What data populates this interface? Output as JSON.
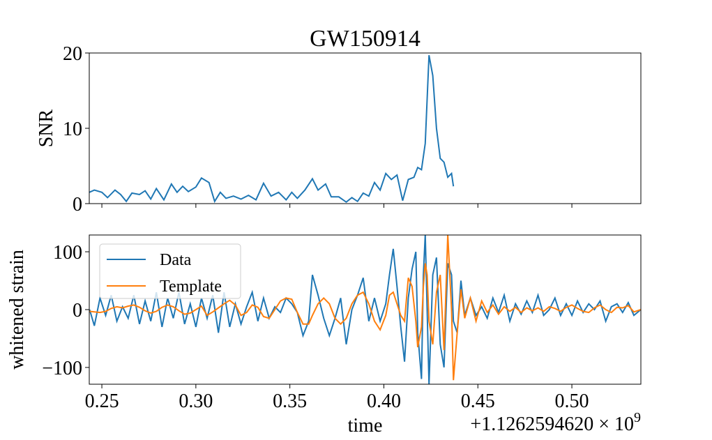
{
  "chart_data": [
    {
      "type": "line",
      "title": "GW150914",
      "ylabel": "SNR",
      "x": [
        0.2433,
        0.246,
        0.25,
        0.253,
        0.257,
        0.26,
        0.263,
        0.266,
        0.27,
        0.273,
        0.276,
        0.279,
        0.283,
        0.287,
        0.29,
        0.293,
        0.296,
        0.3,
        0.303,
        0.307,
        0.31,
        0.313,
        0.316,
        0.32,
        0.324,
        0.328,
        0.332,
        0.336,
        0.34,
        0.344,
        0.348,
        0.351,
        0.354,
        0.358,
        0.362,
        0.365,
        0.369,
        0.372,
        0.376,
        0.38,
        0.383,
        0.386,
        0.389,
        0.392,
        0.395,
        0.398,
        0.401,
        0.404,
        0.407,
        0.41,
        0.413,
        0.416,
        0.418,
        0.42,
        0.422,
        0.424,
        0.426,
        0.428,
        0.43,
        0.432,
        0.434,
        0.436,
        0.437
      ],
      "series": [
        {
          "color": "#1f77b4",
          "values": [
            1.5,
            1.8,
            1.5,
            0.8,
            1.8,
            1.2,
            0.3,
            1.4,
            1.2,
            1.7,
            0.6,
            2.0,
            0.5,
            2.6,
            1.5,
            2.3,
            1.6,
            2.2,
            3.4,
            2.8,
            0.3,
            1.5,
            0.7,
            1.0,
            0.6,
            1.1,
            0.5,
            2.7,
            1.0,
            1.5,
            0.5,
            1.5,
            0.7,
            1.8,
            3.3,
            1.8,
            2.6,
            0.9,
            0.9,
            0.2,
            0.8,
            0.3,
            1.4,
            1.0,
            2.8,
            1.8,
            4.0,
            3.2,
            3.8,
            0.4,
            3.2,
            3.5,
            4.8,
            4.5,
            8,
            19.7,
            17,
            10,
            6,
            5.5,
            3.5,
            4.0,
            2.3
          ]
        }
      ],
      "xlim": [
        0.2433,
        0.5367
      ],
      "xticks": [
        0.25,
        0.3,
        0.35,
        0.4,
        0.45,
        0.5
      ],
      "ylim": [
        0,
        20
      ],
      "yticks": [
        0,
        10,
        20
      ]
    },
    {
      "type": "line",
      "ylabel": "whitened strain",
      "xlabel": "time",
      "x_offset_label": "+1.1262594620 × 10",
      "x_offset_exponent": "9",
      "legend": "upper left",
      "x": [
        0.2435,
        0.246,
        0.249,
        0.252,
        0.255,
        0.258,
        0.261,
        0.264,
        0.267,
        0.27,
        0.273,
        0.276,
        0.279,
        0.282,
        0.285,
        0.288,
        0.291,
        0.294,
        0.297,
        0.3,
        0.303,
        0.306,
        0.309,
        0.312,
        0.315,
        0.318,
        0.321,
        0.324,
        0.327,
        0.33,
        0.333,
        0.336,
        0.339,
        0.342,
        0.345,
        0.348,
        0.351,
        0.354,
        0.357,
        0.36,
        0.362,
        0.365,
        0.368,
        0.371,
        0.374,
        0.377,
        0.38,
        0.383,
        0.386,
        0.389,
        0.392,
        0.395,
        0.398,
        0.401,
        0.403,
        0.405,
        0.407,
        0.409,
        0.411,
        0.413,
        0.415,
        0.417,
        0.418,
        0.42,
        0.421,
        0.422,
        0.423,
        0.424,
        0.426,
        0.428,
        0.43,
        0.432,
        0.434,
        0.436,
        0.437,
        0.439,
        0.441,
        0.443,
        0.446,
        0.449,
        0.452,
        0.455,
        0.458,
        0.461,
        0.464,
        0.467,
        0.47,
        0.473,
        0.476,
        0.479,
        0.482,
        0.485,
        0.488,
        0.491,
        0.494,
        0.497,
        0.5,
        0.503,
        0.506,
        0.509,
        0.512,
        0.515,
        0.518,
        0.521,
        0.524,
        0.527,
        0.53,
        0.533,
        0.5367
      ],
      "series": [
        {
          "name": "Data",
          "color": "#1f77b4",
          "values": [
            0,
            -28,
            20,
            -10,
            25,
            -20,
            5,
            -15,
            25,
            -25,
            15,
            -20,
            30,
            -30,
            20,
            -15,
            30,
            -25,
            10,
            -30,
            20,
            -15,
            25,
            -40,
            30,
            -30,
            10,
            -25,
            5,
            30,
            -20,
            20,
            -15,
            5,
            -5,
            20,
            10,
            -5,
            -45,
            -20,
            60,
            25,
            -15,
            -45,
            -15,
            20,
            -60,
            0,
            25,
            55,
            -20,
            20,
            -20,
            10,
            60,
            105,
            40,
            -30,
            -90,
            20,
            70,
            100,
            -40,
            -120,
            60,
            130,
            0,
            -130,
            60,
            90,
            -60,
            -100,
            80,
            60,
            -20,
            -40,
            50,
            -10,
            20,
            -10,
            5,
            -15,
            20,
            -5,
            25,
            -20,
            10,
            -8,
            15,
            -5,
            25,
            -10,
            0,
            20,
            -10,
            10,
            -10,
            15,
            -5,
            10,
            0,
            15,
            -20,
            5,
            10,
            -5,
            12,
            -10,
            0
          ]
        },
        {
          "name": "Template",
          "color": "#ff7f0e",
          "values": [
            -3,
            -4,
            -5,
            -3,
            2,
            5,
            3,
            6,
            8,
            4,
            -2,
            -6,
            -3,
            4,
            8,
            5,
            -2,
            -8,
            -6,
            0,
            6,
            -10,
            -4,
            3,
            10,
            16,
            8,
            -10,
            -5,
            8,
            4,
            -12,
            -15,
            0,
            15,
            20,
            18,
            -5,
            -25,
            -25,
            -10,
            10,
            20,
            10,
            -15,
            -25,
            -15,
            10,
            25,
            30,
            10,
            -20,
            -35,
            -10,
            25,
            30,
            10,
            -10,
            -20,
            55,
            40,
            -20,
            -65,
            -30,
            40,
            80,
            60,
            -20,
            -60,
            30,
            60,
            -70,
            130,
            0,
            -122,
            -40,
            35,
            -15,
            20,
            -20,
            15,
            -5,
            8,
            -8,
            5,
            -3,
            4,
            -5,
            3,
            -2,
            3,
            -3,
            5,
            2,
            -3,
            4,
            8,
            2,
            -3,
            -5,
            3,
            8,
            0,
            -5,
            4,
            3,
            7,
            -4,
            0
          ]
        }
      ],
      "xlim": [
        0.2433,
        0.5367
      ],
      "xticks": [
        {
          "value": 0.25,
          "label": "0.25"
        },
        {
          "value": 0.3,
          "label": "0.30"
        },
        {
          "value": 0.35,
          "label": "0.35"
        },
        {
          "value": 0.4,
          "label": "0.40"
        },
        {
          "value": 0.45,
          "label": "0.45"
        },
        {
          "value": 0.5,
          "label": "0.50"
        }
      ],
      "ylim": [
        -129,
        129
      ],
      "yticks": [
        {
          "value": -100,
          "label": "−100"
        },
        0,
        100
      ]
    }
  ]
}
